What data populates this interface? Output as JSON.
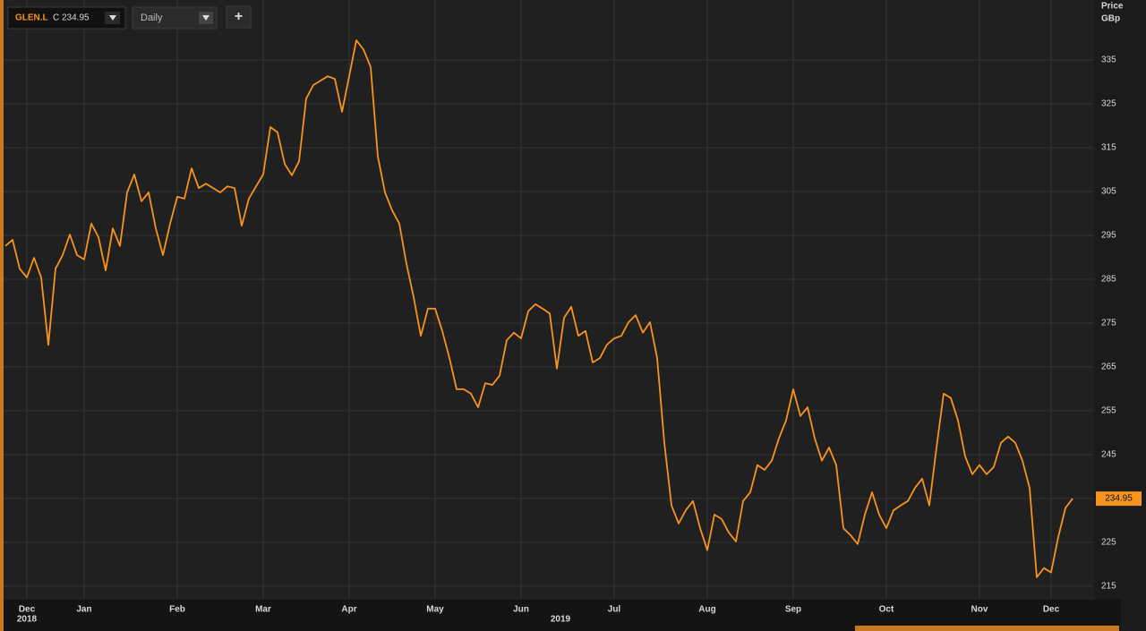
{
  "chart_data": {
    "type": "line",
    "symbol": "GLEN.L",
    "close_label": "C 234.95",
    "interval": "Daily",
    "add_button": "+",
    "y_axis_title": "Price",
    "y_axis_unit": "GBp",
    "years": [
      "2018",
      "2019"
    ],
    "categories": [
      null,
      null,
      null,
      "Dec",
      null,
      null,
      null,
      null,
      null,
      null,
      null,
      "Jan",
      null,
      null,
      null,
      null,
      null,
      null,
      null,
      null,
      null,
      null,
      null,
      null,
      "Feb",
      null,
      null,
      null,
      null,
      null,
      null,
      null,
      null,
      null,
      null,
      null,
      "Mar",
      null,
      null,
      null,
      null,
      null,
      null,
      null,
      null,
      null,
      null,
      null,
      "Apr",
      null,
      null,
      null,
      null,
      null,
      null,
      null,
      null,
      null,
      null,
      null,
      "May",
      null,
      null,
      null,
      null,
      null,
      null,
      null,
      null,
      null,
      null,
      null,
      "Jun",
      null,
      null,
      null,
      null,
      null,
      null,
      null,
      null,
      null,
      null,
      null,
      null,
      "Jul",
      null,
      null,
      null,
      null,
      null,
      null,
      null,
      null,
      null,
      null,
      null,
      null,
      "Aug",
      null,
      null,
      null,
      null,
      null,
      null,
      null,
      null,
      null,
      null,
      null,
      "Sep",
      null,
      null,
      null,
      null,
      null,
      null,
      null,
      null,
      null,
      null,
      null,
      null,
      "Oct",
      null,
      null,
      null,
      null,
      null,
      null,
      null,
      null,
      null,
      null,
      null,
      null,
      "Nov",
      null,
      null,
      null,
      null,
      null,
      null,
      null,
      null,
      null,
      "Dec",
      null,
      null,
      null
    ],
    "series": [
      {
        "name": "GLEN.L",
        "color": "#f7931e",
        "values": [
          292.6,
          294,
          287.4,
          285.4,
          289.9,
          285.4,
          270,
          287.4,
          290.5,
          295.2,
          290.5,
          289.5,
          297.7,
          294.6,
          287,
          296.6,
          292.6,
          304.8,
          308.9,
          302.8,
          304.8,
          296.6,
          290.5,
          297.7,
          303.8,
          303.4,
          310.3,
          305.8,
          306.8,
          305.8,
          304.8,
          306.2,
          305.8,
          297.2,
          303.4,
          306.2,
          308.9,
          319.7,
          318.5,
          311.3,
          308.7,
          311.9,
          326.2,
          329.3,
          330.3,
          331.3,
          330.7,
          323.2,
          331.3,
          339.5,
          337.4,
          333.4,
          313,
          304.8,
          300.7,
          297.7,
          288.5,
          280.9,
          272.1,
          278.3,
          278.3,
          273.2,
          267,
          259.9,
          259.9,
          258.9,
          255.8,
          261.3,
          260.9,
          263,
          271.1,
          272.8,
          271.5,
          277.7,
          279.3,
          278.3,
          277.2,
          264.6,
          276.2,
          278.7,
          272.1,
          273.2,
          266,
          267,
          270.1,
          271.5,
          272.1,
          275.2,
          276.8,
          272.8,
          275.2,
          267,
          247.7,
          233.4,
          229.3,
          232.3,
          234.4,
          228.2,
          223.2,
          231.3,
          230.3,
          227.2,
          225.2,
          234.4,
          236.4,
          242.6,
          241.5,
          243.6,
          248.7,
          252.8,
          259.9,
          253.8,
          255.8,
          248.7,
          243.6,
          246.6,
          242.6,
          228.2,
          226.6,
          224.6,
          231.3,
          236.4,
          231.3,
          228.2,
          232.3,
          233.4,
          234.4,
          237.4,
          239.5,
          233.4,
          246.6,
          258.9,
          257.9,
          252.8,
          244.6,
          240.5,
          242.6,
          240.5,
          242.2,
          247.7,
          249.1,
          247.7,
          243.6,
          237.4,
          217,
          219.1,
          218.1,
          226.2,
          232.8,
          234.95
        ]
      }
    ],
    "last_price_label": "234.95",
    "ylim": [
      211.9,
      348.7
    ],
    "yticks": [
      215,
      225,
      235,
      245,
      255,
      265,
      275,
      285,
      295,
      305,
      315,
      325,
      335
    ],
    "grid": true
  }
}
